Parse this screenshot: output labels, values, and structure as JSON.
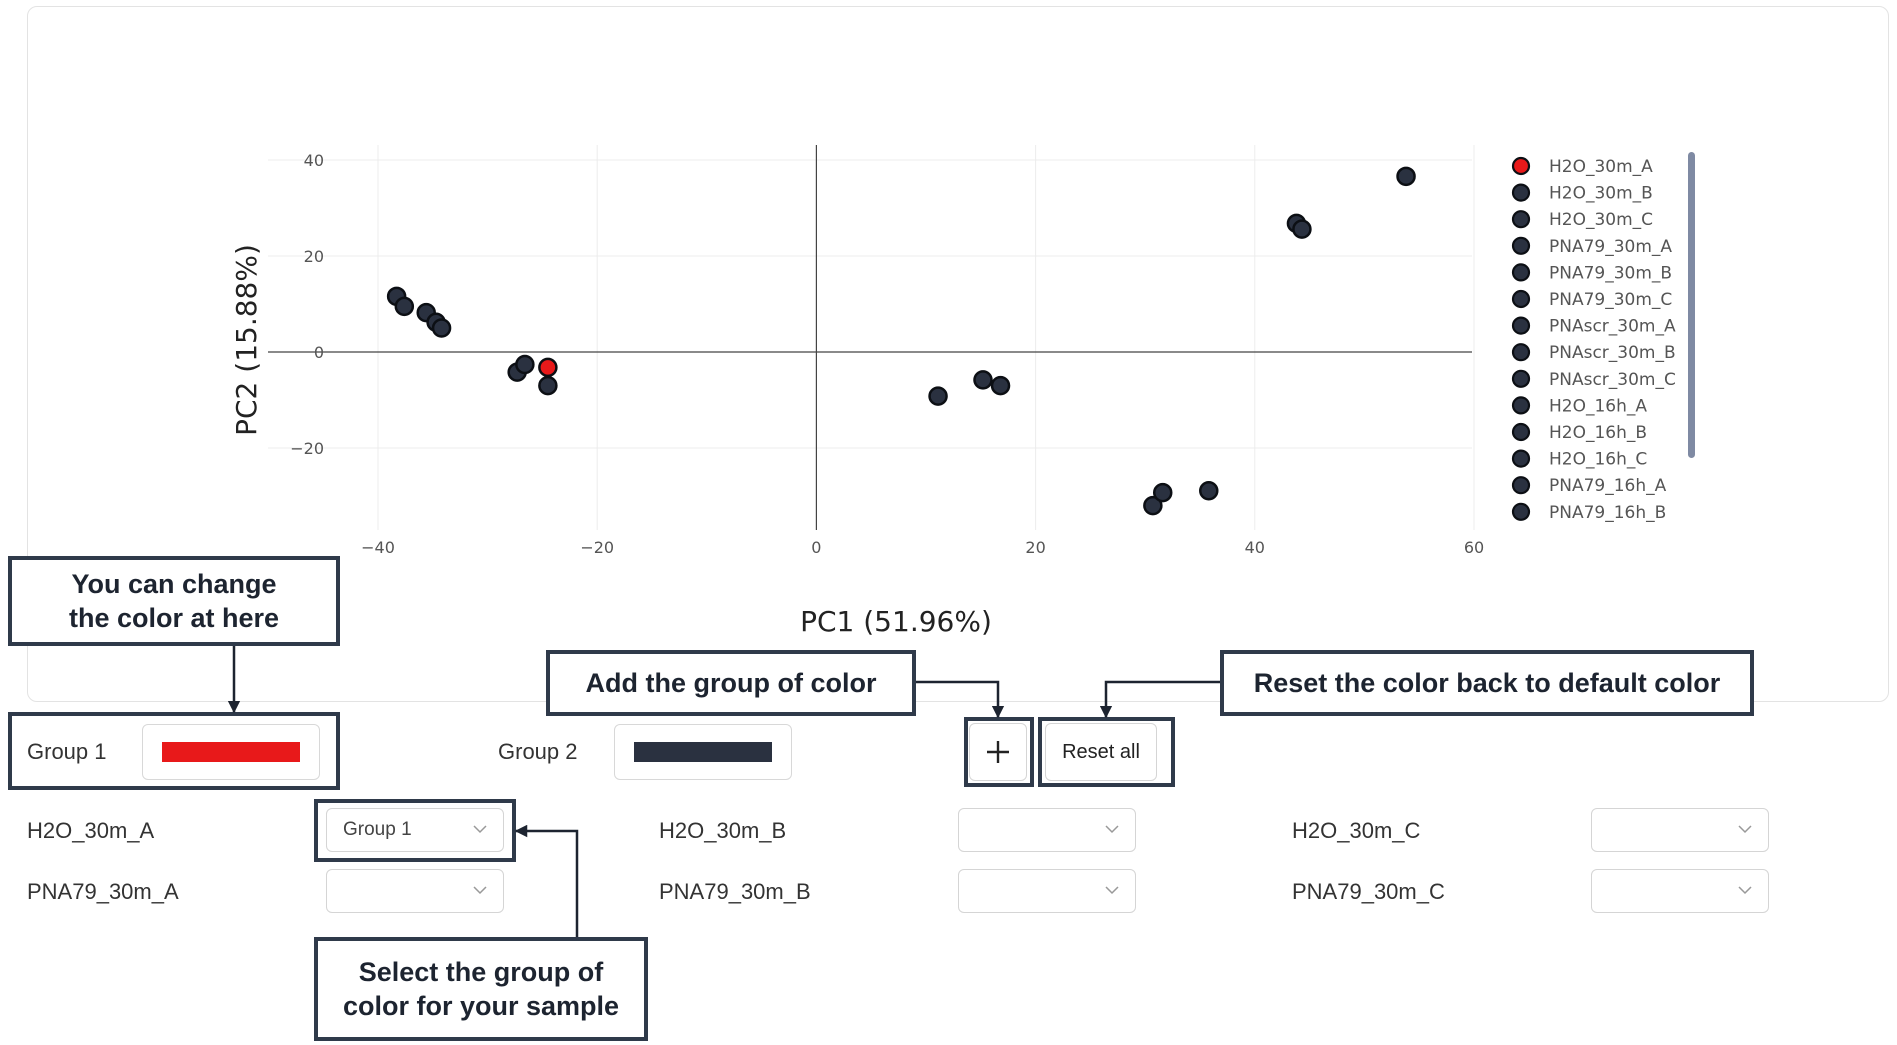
{
  "chart_data": {
    "type": "scatter",
    "xlabel": "PC1 (51.96%)",
    "ylabel": "PC2 (15.88%)",
    "xlim": [
      -42,
      60
    ],
    "ylim": [
      -40,
      43
    ],
    "xticks": [
      -40,
      -20,
      0,
      20,
      40,
      60
    ],
    "yticks": [
      40,
      20,
      0,
      -20
    ],
    "xtick_labels": [
      "−40",
      "−20",
      "0",
      "20",
      "40",
      "60"
    ],
    "ytick_labels": [
      "40",
      "20",
      "0",
      "−20"
    ],
    "grid": true,
    "legend_position": "right",
    "points": [
      {
        "x": -24.5,
        "y": -3.2,
        "color": "#e8191a"
      },
      {
        "x": -24.5,
        "y": -7.0,
        "color": "#2a3140"
      },
      {
        "x": -27.3,
        "y": -4.2,
        "color": "#2a3140"
      },
      {
        "x": -26.6,
        "y": -2.6,
        "color": "#2a3140"
      },
      {
        "x": -38.3,
        "y": 11.6,
        "color": "#2a3140"
      },
      {
        "x": -37.6,
        "y": 9.5,
        "color": "#2a3140"
      },
      {
        "x": -35.6,
        "y": 8.2,
        "color": "#2a3140"
      },
      {
        "x": -34.7,
        "y": 6.2,
        "color": "#2a3140"
      },
      {
        "x": -34.2,
        "y": 5.0,
        "color": "#2a3140"
      },
      {
        "x": 11.1,
        "y": -9.2,
        "color": "#2a3140"
      },
      {
        "x": 15.2,
        "y": -5.8,
        "color": "#2a3140"
      },
      {
        "x": 16.8,
        "y": -7.0,
        "color": "#2a3140"
      },
      {
        "x": 30.7,
        "y": -32.0,
        "color": "#2a3140"
      },
      {
        "x": 31.6,
        "y": -29.3,
        "color": "#2a3140"
      },
      {
        "x": 35.8,
        "y": -28.9,
        "color": "#2a3140"
      },
      {
        "x": 43.8,
        "y": 26.8,
        "color": "#2a3140"
      },
      {
        "x": 44.3,
        "y": 25.6,
        "color": "#2a3140"
      },
      {
        "x": 53.8,
        "y": 36.6,
        "color": "#2a3140"
      }
    ],
    "legend": [
      {
        "name": "H2O_30m_A",
        "color": "#e8191a"
      },
      {
        "name": "H2O_30m_B",
        "color": "#2a3140"
      },
      {
        "name": "H2O_30m_C",
        "color": "#2a3140"
      },
      {
        "name": "PNA79_30m_A",
        "color": "#2a3140"
      },
      {
        "name": "PNA79_30m_B",
        "color": "#2a3140"
      },
      {
        "name": "PNA79_30m_C",
        "color": "#2a3140"
      },
      {
        "name": "PNAscr_30m_A",
        "color": "#2a3140"
      },
      {
        "name": "PNAscr_30m_B",
        "color": "#2a3140"
      },
      {
        "name": "PNAscr_30m_C",
        "color": "#2a3140"
      },
      {
        "name": "H2O_16h_A",
        "color": "#2a3140"
      },
      {
        "name": "H2O_16h_B",
        "color": "#2a3140"
      },
      {
        "name": "H2O_16h_C",
        "color": "#2a3140"
      },
      {
        "name": "PNA79_16h_A",
        "color": "#2a3140"
      },
      {
        "name": "PNA79_16h_B",
        "color": "#2a3140"
      }
    ]
  },
  "annotations": {
    "change_color": "You can change\nthe color at here",
    "add_group": "Add the group of color",
    "reset": "Reset the color back to default color",
    "select_group": "Select the group of\ncolor for your sample"
  },
  "groups": [
    {
      "label": "Group 1",
      "color": "#e8191a"
    },
    {
      "label": "Group 2",
      "color": "#2a3140"
    }
  ],
  "buttons": {
    "add_icon": "plus-icon",
    "add_symbol": "+",
    "reset_label": "Reset all"
  },
  "samples": [
    {
      "name": "H2O_30m_A",
      "group": "Group 1"
    },
    {
      "name": "H2O_30m_B",
      "group": ""
    },
    {
      "name": "H2O_30m_C",
      "group": ""
    },
    {
      "name": "PNA79_30m_A",
      "group": ""
    },
    {
      "name": "PNA79_30m_B",
      "group": ""
    },
    {
      "name": "PNA79_30m_C",
      "group": ""
    }
  ]
}
